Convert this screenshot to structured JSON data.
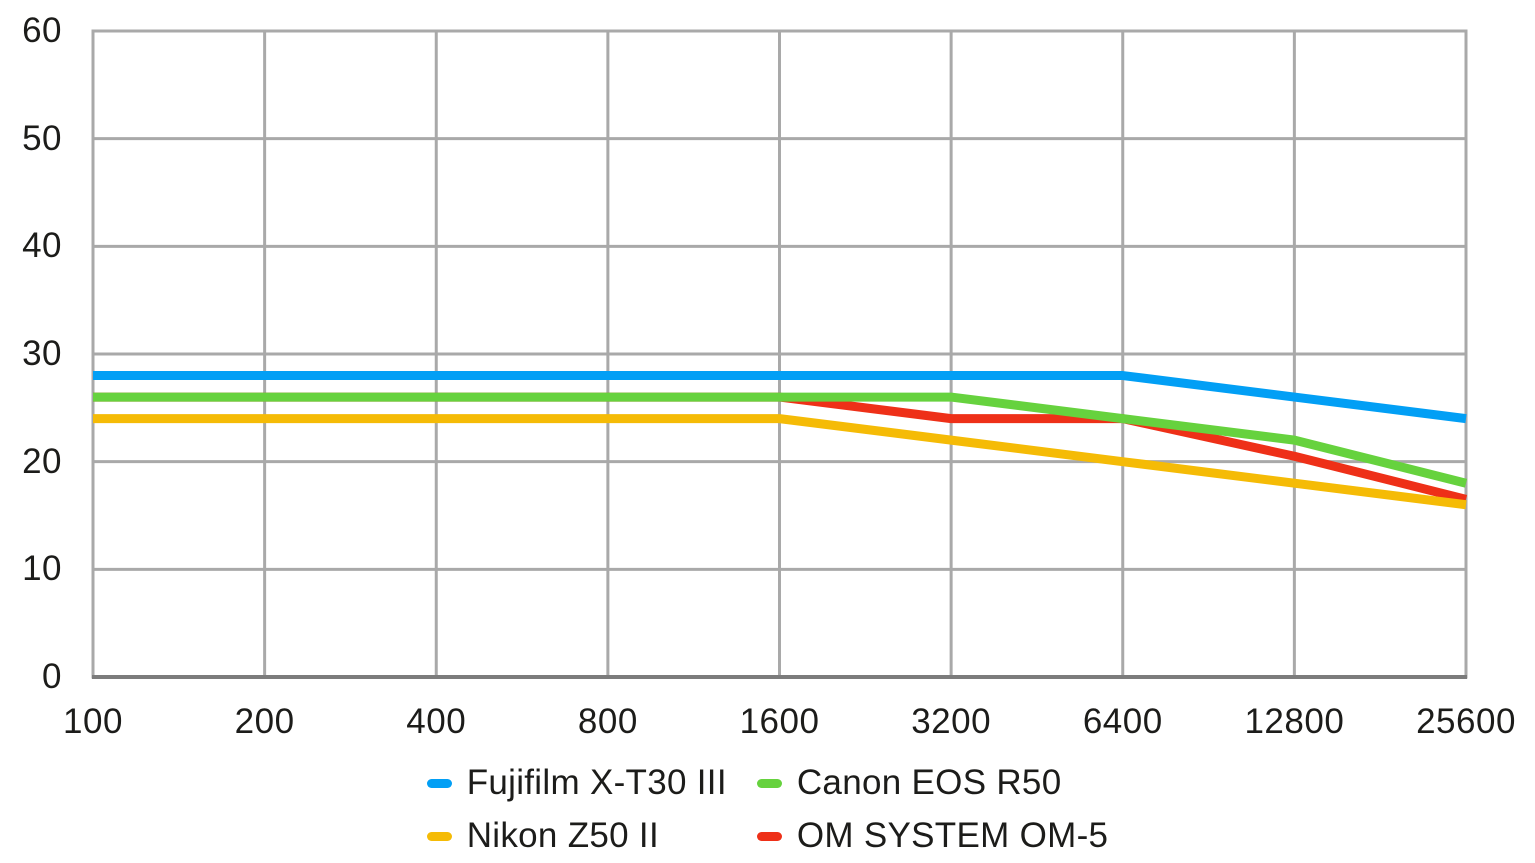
{
  "chart_data": {
    "type": "line",
    "title": "",
    "xlabel": "",
    "ylabel": "",
    "categories": [
      "100",
      "200",
      "400",
      "800",
      "1600",
      "3200",
      "6400",
      "12800",
      "25600"
    ],
    "y_ticks": [
      0,
      10,
      20,
      30,
      40,
      50,
      60
    ],
    "ylim": [
      0,
      60
    ],
    "grid": true,
    "legend_position": "bottom",
    "grid_color": "#a9a9a9",
    "axis_color": "#7c7c7c",
    "series": [
      {
        "name": "Fujifilm X-T30 III",
        "color": "#029ff5",
        "values": [
          28,
          28,
          28,
          28,
          28,
          28,
          28,
          26,
          24
        ]
      },
      {
        "name": "Canon EOS R50",
        "color": "#66d23e",
        "values": [
          26,
          26,
          26,
          26,
          26,
          26,
          24,
          22,
          18
        ]
      },
      {
        "name": "Nikon Z50 II",
        "color": "#f5bb06",
        "values": [
          24,
          24,
          24,
          24,
          24,
          22,
          20,
          18,
          16
        ]
      },
      {
        "name": "OM SYSTEM OM-5",
        "color": "#ee3018",
        "values": [
          26,
          26,
          26,
          26,
          26,
          24,
          24,
          20.5,
          16.5
        ]
      }
    ],
    "draw_order": [
      "OM SYSTEM OM-5",
      "Nikon Z50 II",
      "Canon EOS R50",
      "Fujifilm X-T30 III"
    ]
  },
  "legend": {
    "items": [
      "Fujifilm X-T30 III",
      "Canon EOS R50",
      "Nikon Z50 II",
      "OM SYSTEM OM-5"
    ]
  }
}
